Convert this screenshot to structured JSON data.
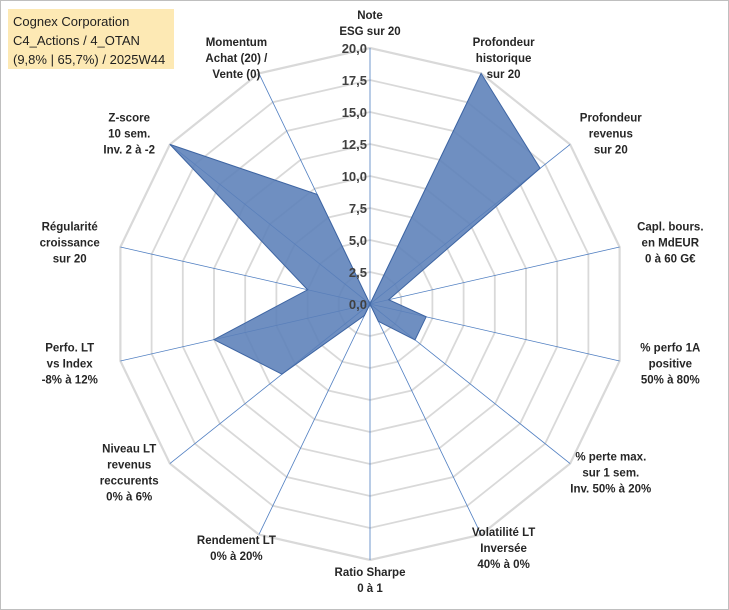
{
  "info": {
    "company": "Cognex Corporation",
    "portfolio": "C4_Actions / 4_OTAN",
    "stats": "(9,8% | 65,7%) / 2025W44"
  },
  "chart_data": {
    "type": "radar",
    "title": "",
    "range": [
      0,
      20
    ],
    "ticks": [
      "0,0",
      "2,5",
      "5,0",
      "7,5",
      "10,0",
      "12,5",
      "15,0",
      "17,5",
      "20,0"
    ],
    "grid": true,
    "colors": {
      "fill": "#5b7fb8",
      "stroke": "#3e65a3",
      "grid": "#d9d9d9",
      "spoke": "#4f7ec1"
    },
    "axes": [
      {
        "label": [
          "Note",
          "ESG sur 20"
        ],
        "value": 0
      },
      {
        "label": [
          "Profondeur",
          "historique",
          "sur 20"
        ],
        "value": 20
      },
      {
        "label": [
          "Profondeur",
          "revenus",
          "sur 20"
        ],
        "value": 17
      },
      {
        "label": [
          "Capl. bours.",
          "en MdEUR",
          "0 à 60 G€"
        ],
        "value": 1.5
      },
      {
        "label": [
          "% perfo 1A",
          "positive",
          "50% à 80%"
        ],
        "value": 4.5
      },
      {
        "label": [
          "% perte max.",
          "sur 1 sem.",
          "Inv. 50% à 20%"
        ],
        "value": 4.5
      },
      {
        "label": [
          "Volatilité LT",
          "Inversée",
          "40% à 0%"
        ],
        "value": 1.5
      },
      {
        "label": [
          "Ratio Sharpe",
          "0 à 1"
        ],
        "value": 0
      },
      {
        "label": [
          "Rendement LT",
          "0% à 20%"
        ],
        "value": 1
      },
      {
        "label": [
          "Niveau LT",
          "revenus",
          "reccurents",
          "0% à 6%"
        ],
        "value": 8.8
      },
      {
        "label": [
          "Perfo. LT",
          "vs Index",
          "-8% à 12%"
        ],
        "value": 12.5
      },
      {
        "label": [
          "Régularité",
          "croissance",
          "sur 20"
        ],
        "value": 5
      },
      {
        "label": [
          "Z-score",
          "10 sem.",
          "Inv. 2 à -2"
        ],
        "value": 20
      },
      {
        "label": [
          "Momentum",
          "Achat (20) /",
          "Vente (0)"
        ],
        "value": 9.5
      }
    ]
  }
}
